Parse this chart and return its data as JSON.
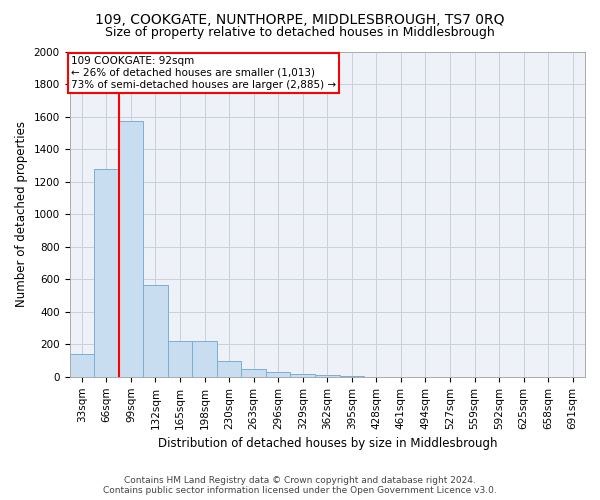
{
  "title": "109, COOKGATE, NUNTHORPE, MIDDLESBROUGH, TS7 0RQ",
  "subtitle": "Size of property relative to detached houses in Middlesbrough",
  "xlabel": "Distribution of detached houses by size in Middlesbrough",
  "ylabel": "Number of detached properties",
  "footer_line1": "Contains HM Land Registry data © Crown copyright and database right 2024.",
  "footer_line2": "Contains public sector information licensed under the Open Government Licence v3.0.",
  "bar_labels": [
    "33sqm",
    "66sqm",
    "99sqm",
    "132sqm",
    "165sqm",
    "198sqm",
    "230sqm",
    "263sqm",
    "296sqm",
    "329sqm",
    "362sqm",
    "395sqm",
    "428sqm",
    "461sqm",
    "494sqm",
    "527sqm",
    "559sqm",
    "592sqm",
    "625sqm",
    "658sqm",
    "691sqm"
  ],
  "bar_values": [
    140,
    1275,
    1570,
    565,
    220,
    220,
    95,
    50,
    30,
    20,
    10,
    5,
    0,
    0,
    0,
    0,
    0,
    0,
    0,
    0,
    0
  ],
  "bar_color": "#c9ddf0",
  "bar_edgecolor": "#7aafd4",
  "grid_color": "#c8d0dc",
  "annotation_text": "109 COOKGATE: 92sqm\n← 26% of detached houses are smaller (1,013)\n73% of semi-detached houses are larger (2,885) →",
  "annotation_box_edgecolor": "red",
  "vline_x": 1.5,
  "vline_color": "red",
  "ylim": [
    0,
    2000
  ],
  "yticks": [
    0,
    200,
    400,
    600,
    800,
    1000,
    1200,
    1400,
    1600,
    1800,
    2000
  ],
  "background_color": "#eef2f8",
  "title_fontsize": 10,
  "subtitle_fontsize": 9,
  "axis_label_fontsize": 8.5,
  "tick_fontsize": 7.5,
  "footer_fontsize": 6.5,
  "annotation_fontsize": 7.5
}
